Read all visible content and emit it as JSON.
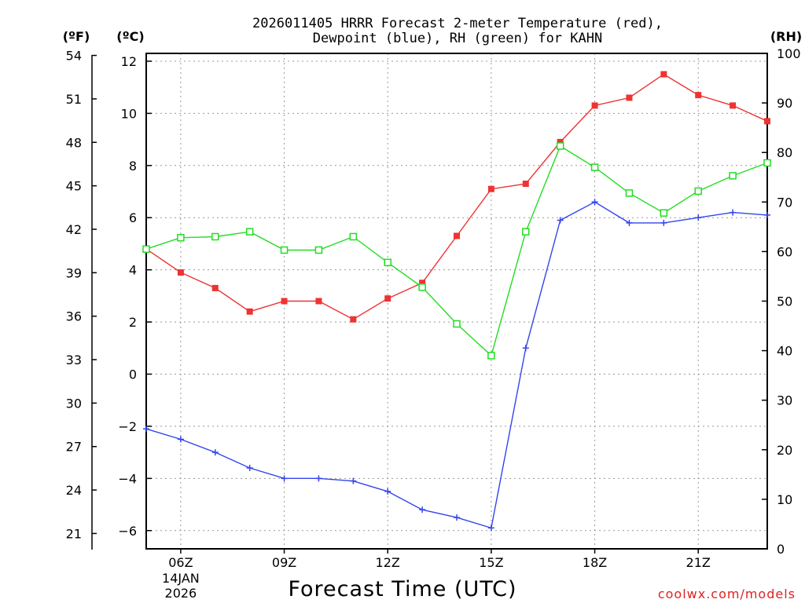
{
  "chart_data": {
    "type": "line",
    "title_line1": "2026011405 HRRR Forecast 2-meter Temperature (red),",
    "title_line2": "Dewpoint (blue), RH (green) for KAHN",
    "xlabel": "Forecast Time (UTC)",
    "credit": "coolwx.com/models",
    "unit_f": "(ºF)",
    "unit_c": "(ºC)",
    "unit_rh": "(RH)",
    "x_range": [
      5,
      23
    ],
    "x_ticks": [
      {
        "x": 6,
        "label": "06Z",
        "sub1": "14JAN",
        "sub2": "2026"
      },
      {
        "x": 9,
        "label": "09Z"
      },
      {
        "x": 12,
        "label": "12Z"
      },
      {
        "x": 15,
        "label": "15Z"
      },
      {
        "x": 18,
        "label": "18Z"
      },
      {
        "x": 21,
        "label": "21Z"
      }
    ],
    "y_celsius": {
      "range": [
        -6.7,
        12.3
      ],
      "ticks": [
        -6,
        -4,
        -2,
        0,
        2,
        4,
        6,
        8,
        10,
        12
      ],
      "tick_labels": [
        "−6",
        "−4",
        "−2",
        "0",
        "2",
        "4",
        "6",
        "8",
        "10",
        "12"
      ]
    },
    "y_fahrenheit": {
      "ticks": [
        21,
        24,
        27,
        30,
        33,
        36,
        39,
        42,
        45,
        48,
        51,
        54
      ]
    },
    "y_rh": {
      "range": [
        0,
        100
      ],
      "ticks": [
        0,
        10,
        20,
        30,
        40,
        50,
        60,
        70,
        80,
        90,
        100
      ]
    },
    "x": [
      5,
      6,
      7,
      8,
      9,
      10,
      11,
      12,
      13,
      14,
      15,
      16,
      17,
      18,
      19,
      20,
      21,
      22,
      23
    ],
    "series": [
      {
        "name": "Temperature",
        "axis": "celsius",
        "color": "#ee3333",
        "marker": "filled-square",
        "values": [
          4.8,
          3.9,
          3.3,
          2.4,
          2.8,
          2.8,
          2.1,
          2.9,
          3.5,
          5.3,
          7.1,
          7.3,
          8.9,
          10.3,
          10.6,
          11.5,
          10.7,
          10.3,
          9.7
        ]
      },
      {
        "name": "Dewpoint",
        "axis": "celsius",
        "color": "#3344ee",
        "marker": "plus",
        "values": [
          -2.1,
          -2.5,
          -3.0,
          -3.6,
          -4.0,
          -4.0,
          -4.1,
          -4.5,
          -5.2,
          -5.5,
          -5.9,
          1.0,
          5.9,
          6.6,
          5.8,
          5.8,
          6.0,
          6.2,
          6.1
        ]
      },
      {
        "name": "RH",
        "axis": "rh",
        "color": "#22dd22",
        "marker": "open-square",
        "values": [
          60.5,
          62.8,
          63.0,
          64.0,
          60.3,
          60.3,
          63.0,
          57.8,
          52.8,
          45.4,
          39.0,
          64.0,
          81.3,
          77.0,
          71.8,
          67.8,
          72.2,
          75.3,
          77.9
        ]
      }
    ]
  }
}
